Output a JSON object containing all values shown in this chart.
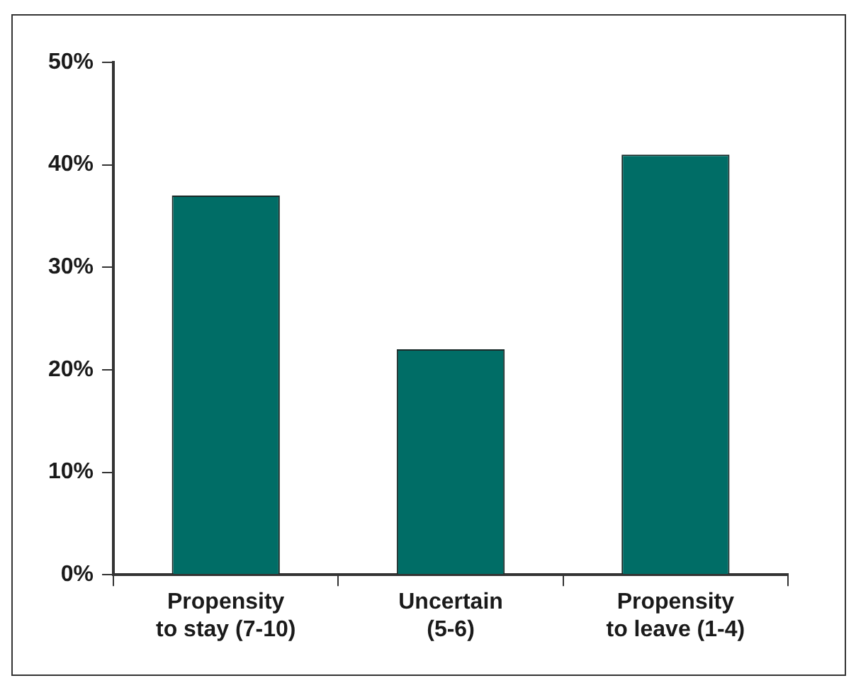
{
  "chart_data": {
    "type": "bar",
    "categories": [
      "Propensity\nto stay (7-10)",
      "Uncertain\n(5-6)",
      "Propensity\nto leave (1-4)"
    ],
    "values": [
      37,
      22,
      41
    ],
    "color": "#006d66",
    "ylim": [
      0,
      50
    ],
    "yticks": [
      {
        "value": 0,
        "label": "0%"
      },
      {
        "value": 10,
        "label": "10%"
      },
      {
        "value": 20,
        "label": "20%"
      },
      {
        "value": 30,
        "label": "30%"
      },
      {
        "value": 40,
        "label": "40%"
      },
      {
        "value": 50,
        "label": "50%"
      }
    ],
    "grid": false,
    "legend": false
  }
}
